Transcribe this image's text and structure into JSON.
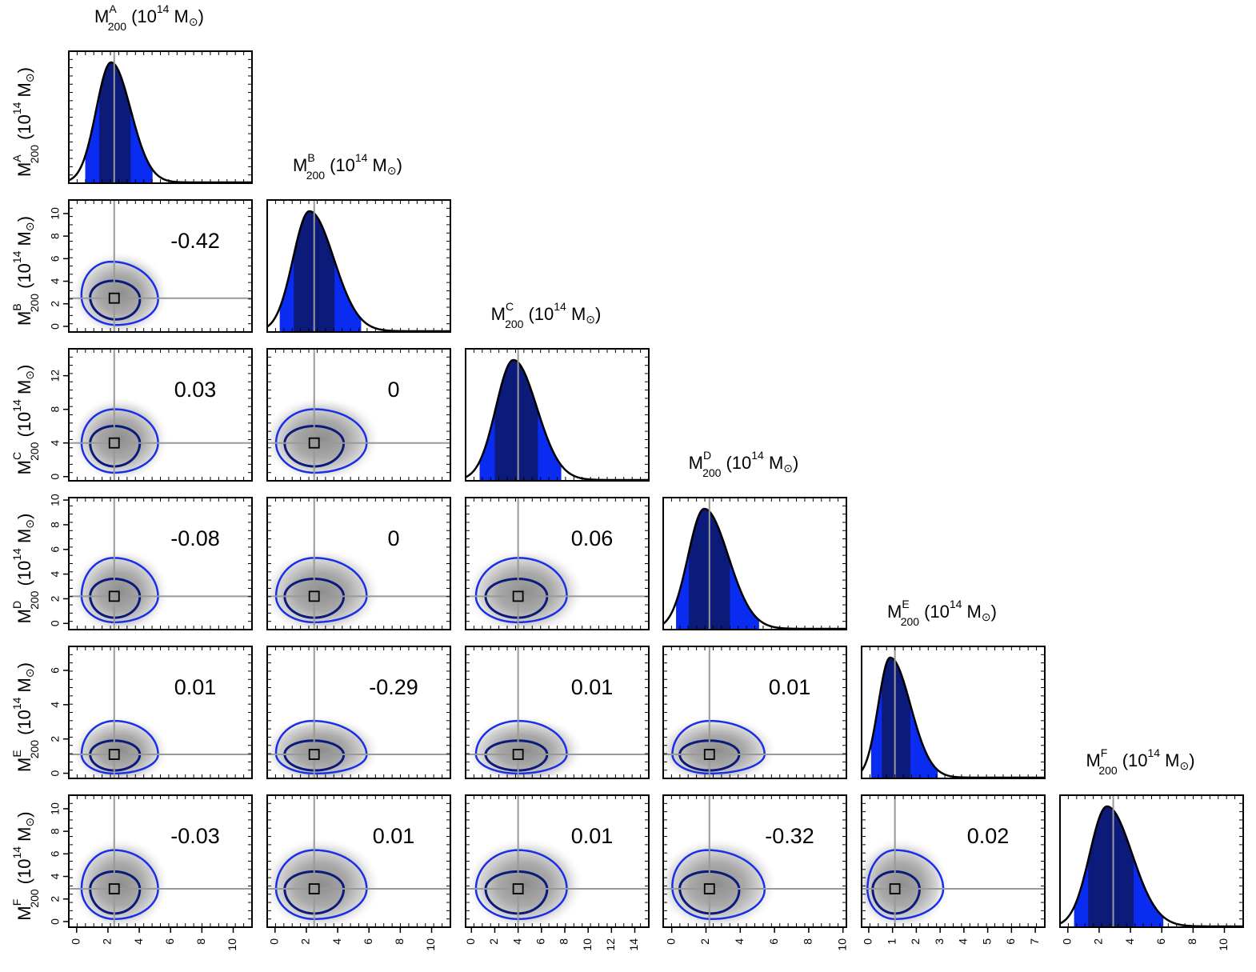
{
  "chart_data": {
    "type": "corner",
    "parameters": [
      {
        "key": "A",
        "base": "M",
        "sub": "200",
        "sup": "A",
        "unit_prefix": "(10",
        "unit_exp": "14",
        "unit_suffix": " M",
        "unit_close": ")",
        "xlim": [
          -0.5,
          11.2
        ],
        "xticks": [
          0,
          2,
          4,
          6,
          8,
          10
        ],
        "best": 2.4,
        "p16": 1.45,
        "p84": 3.45,
        "p2": 0.55,
        "p98": 4.85,
        "mode": 2.2,
        "sigma_left": 0.95,
        "sigma_right": 1.25
      },
      {
        "key": "B",
        "base": "M",
        "sub": "200",
        "sup": "B",
        "unit_prefix": "(10",
        "unit_exp": "14",
        "unit_suffix": " M",
        "unit_close": ")",
        "xlim": [
          -0.5,
          11.2
        ],
        "xticks": [
          0,
          2,
          4,
          6,
          8,
          10
        ],
        "yticks": [
          0,
          2,
          4,
          6,
          8,
          10
        ],
        "best": 2.5,
        "p16": 1.2,
        "p84": 3.8,
        "p2": 0.3,
        "p98": 5.5,
        "mode": 2.2,
        "sigma_left": 1.05,
        "sigma_right": 1.55
      },
      {
        "key": "C",
        "base": "M",
        "sub": "200",
        "sup": "C",
        "unit_prefix": "(10",
        "unit_exp": "14",
        "unit_suffix": " M",
        "unit_close": ")",
        "xlim": [
          -0.5,
          15.2
        ],
        "xticks": [
          0,
          2,
          4,
          6,
          8,
          10,
          12,
          14
        ],
        "yticks": [
          0,
          4,
          8,
          12
        ],
        "best": 4.0,
        "p16": 2.0,
        "p84": 5.7,
        "p2": 0.7,
        "p98": 7.7,
        "mode": 3.6,
        "sigma_left": 1.5,
        "sigma_right": 2.0
      },
      {
        "key": "D",
        "base": "M",
        "sub": "200",
        "sup": "D",
        "unit_prefix": "(10",
        "unit_exp": "14",
        "unit_suffix": " M",
        "unit_close": ")",
        "xlim": [
          -0.5,
          10.2
        ],
        "xticks": [
          0,
          2,
          4,
          6,
          8,
          10
        ],
        "yticks": [
          0,
          2,
          4,
          6,
          8,
          10
        ],
        "best": 2.2,
        "p16": 1.0,
        "p84": 3.4,
        "p2": 0.25,
        "p98": 5.1,
        "mode": 1.9,
        "sigma_left": 0.95,
        "sigma_right": 1.4
      },
      {
        "key": "E",
        "base": "M",
        "sub": "200",
        "sup": "E",
        "unit_prefix": "(10",
        "unit_exp": "14",
        "unit_suffix": " M",
        "unit_close": ")",
        "xlim": [
          -0.3,
          7.4
        ],
        "xticks": [
          0,
          1,
          2,
          3,
          4,
          5,
          6,
          7
        ],
        "yticks": [
          0,
          2,
          4,
          6
        ],
        "best": 1.1,
        "p16": 0.55,
        "p84": 1.75,
        "p2": 0.1,
        "p98": 2.9,
        "mode": 0.9,
        "sigma_left": 0.5,
        "sigma_right": 0.85
      },
      {
        "key": "F",
        "base": "M",
        "sub": "200",
        "sup": "F",
        "unit_prefix": "(10",
        "unit_exp": "14",
        "unit_suffix": " M",
        "unit_close": ")",
        "xlim": [
          -0.5,
          11.2
        ],
        "xticks": [
          0,
          2,
          4,
          6,
          8,
          10
        ],
        "yticks": [
          0,
          2,
          4,
          6,
          8,
          10
        ],
        "best": 2.9,
        "p16": 1.3,
        "p84": 4.2,
        "p2": 0.4,
        "p98": 6.1,
        "mode": 2.5,
        "sigma_left": 1.1,
        "sigma_right": 1.6
      }
    ],
    "correlations": [
      {
        "row": 1,
        "col": 0,
        "value": "-0.42"
      },
      {
        "row": 2,
        "col": 0,
        "value": "0.03"
      },
      {
        "row": 2,
        "col": 1,
        "value": "0"
      },
      {
        "row": 3,
        "col": 0,
        "value": "-0.08"
      },
      {
        "row": 3,
        "col": 1,
        "value": "0"
      },
      {
        "row": 3,
        "col": 2,
        "value": "0.06"
      },
      {
        "row": 4,
        "col": 0,
        "value": "0.01"
      },
      {
        "row": 4,
        "col": 1,
        "value": "-0.29"
      },
      {
        "row": 4,
        "col": 2,
        "value": "0.01"
      },
      {
        "row": 4,
        "col": 3,
        "value": "0.01"
      },
      {
        "row": 5,
        "col": 0,
        "value": "-0.03"
      },
      {
        "row": 5,
        "col": 1,
        "value": "0.01"
      },
      {
        "row": 5,
        "col": 2,
        "value": "0.01"
      },
      {
        "row": 5,
        "col": 3,
        "value": "-0.32"
      },
      {
        "row": 5,
        "col": 4,
        "value": "0.02"
      }
    ],
    "sun_symbol": "⊙",
    "colors": {
      "one_sigma_fill": "#0c1a7a",
      "two_sigma_fill": "#0a2cf0",
      "one_sigma_contour": "#0c1a7a",
      "two_sigma_contour": "#1a2fe6",
      "density_line": "#000000",
      "best_fit_line": "#999999",
      "frame": "#000000"
    }
  }
}
